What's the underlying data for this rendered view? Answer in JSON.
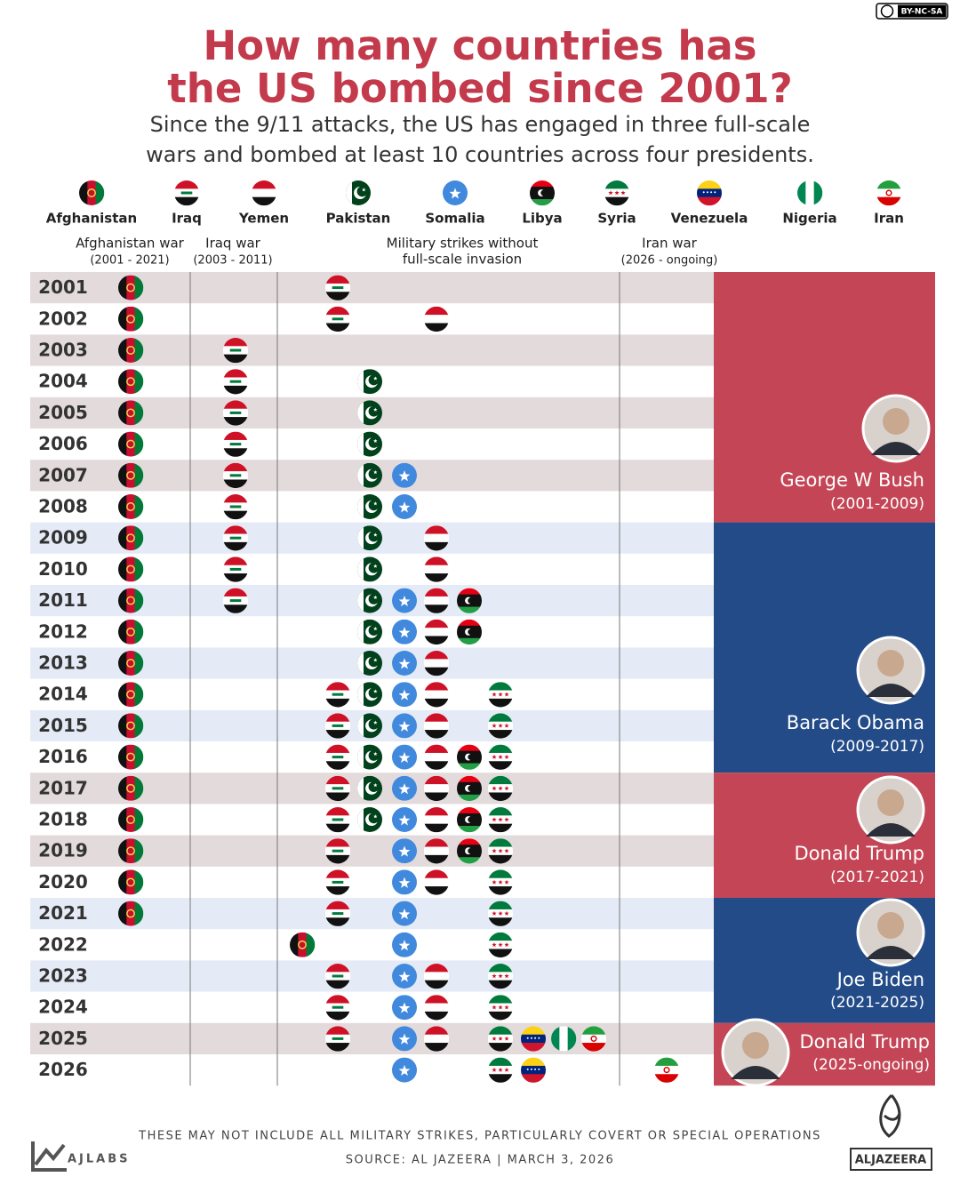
{
  "license": "BY-NC-SA",
  "title": [
    "How many countries has",
    "the US bombed since 2001?"
  ],
  "subtitle": [
    "Since the 9/11 attacks, the US has engaged in three full-scale",
    "wars and bombed at least 10 countries across four presidents."
  ],
  "countries": [
    "Afghanistan",
    "Iraq",
    "Yemen",
    "Pakistan",
    "Somalia",
    "Libya",
    "Syria",
    "Venezuela",
    "Nigeria",
    "Iran"
  ],
  "column_groups": [
    {
      "label": [
        "Afghanistan war"
      ],
      "period": "(2001 - 2021)"
    },
    {
      "label": [
        "Iraq war"
      ],
      "period": "(2003 - 2011)"
    },
    {
      "label": [
        "Military strikes without",
        "full-scale invasion"
      ]
    },
    {
      "label": [
        "Iran war"
      ],
      "period": "(2026 - ongoing)"
    }
  ],
  "rows": [
    {
      "year": "2001",
      "wars": [
        "Afghanistan"
      ],
      "strikes": [
        "Iraq"
      ]
    },
    {
      "year": "2002",
      "wars": [
        "Afghanistan"
      ],
      "strikes": [
        "Iraq",
        "Yemen"
      ]
    },
    {
      "year": "2003",
      "wars": [
        "Afghanistan",
        "Iraq"
      ],
      "strikes": []
    },
    {
      "year": "2004",
      "wars": [
        "Afghanistan",
        "Iraq"
      ],
      "strikes": [
        "Pakistan"
      ]
    },
    {
      "year": "2005",
      "wars": [
        "Afghanistan",
        "Iraq"
      ],
      "strikes": [
        "Pakistan"
      ]
    },
    {
      "year": "2006",
      "wars": [
        "Afghanistan",
        "Iraq"
      ],
      "strikes": [
        "Pakistan"
      ]
    },
    {
      "year": "2007",
      "wars": [
        "Afghanistan",
        "Iraq"
      ],
      "strikes": [
        "Pakistan",
        "Somalia"
      ]
    },
    {
      "year": "2008",
      "wars": [
        "Afghanistan",
        "Iraq"
      ],
      "strikes": [
        "Pakistan",
        "Somalia"
      ]
    },
    {
      "year": "2009",
      "wars": [
        "Afghanistan",
        "Iraq"
      ],
      "strikes": [
        "Pakistan",
        "Yemen"
      ]
    },
    {
      "year": "2010",
      "wars": [
        "Afghanistan",
        "Iraq"
      ],
      "strikes": [
        "Pakistan",
        "Yemen"
      ]
    },
    {
      "year": "2011",
      "wars": [
        "Afghanistan",
        "Iraq"
      ],
      "strikes": [
        "Pakistan",
        "Somalia",
        "Yemen",
        "Libya"
      ]
    },
    {
      "year": "2012",
      "wars": [
        "Afghanistan"
      ],
      "strikes": [
        "Pakistan",
        "Somalia",
        "Yemen",
        "Libya"
      ]
    },
    {
      "year": "2013",
      "wars": [
        "Afghanistan"
      ],
      "strikes": [
        "Pakistan",
        "Somalia",
        "Yemen"
      ]
    },
    {
      "year": "2014",
      "wars": [
        "Afghanistan"
      ],
      "strikes": [
        "Iraq",
        "Pakistan",
        "Somalia",
        "Yemen",
        "Syria"
      ]
    },
    {
      "year": "2015",
      "wars": [
        "Afghanistan"
      ],
      "strikes": [
        "Iraq",
        "Pakistan",
        "Somalia",
        "Yemen",
        "Syria"
      ]
    },
    {
      "year": "2016",
      "wars": [
        "Afghanistan"
      ],
      "strikes": [
        "Iraq",
        "Pakistan",
        "Somalia",
        "Yemen",
        "Libya",
        "Syria"
      ]
    },
    {
      "year": "2017",
      "wars": [
        "Afghanistan"
      ],
      "strikes": [
        "Iraq",
        "Pakistan",
        "Somalia",
        "Yemen",
        "Libya",
        "Syria"
      ]
    },
    {
      "year": "2018",
      "wars": [
        "Afghanistan"
      ],
      "strikes": [
        "Iraq",
        "Pakistan",
        "Somalia",
        "Yemen",
        "Libya",
        "Syria"
      ]
    },
    {
      "year": "2019",
      "wars": [
        "Afghanistan"
      ],
      "strikes": [
        "Iraq",
        "Somalia",
        "Yemen",
        "Libya",
        "Syria"
      ]
    },
    {
      "year": "2020",
      "wars": [
        "Afghanistan"
      ],
      "strikes": [
        "Iraq",
        "Somalia",
        "Yemen",
        "Syria"
      ]
    },
    {
      "year": "2021",
      "wars": [
        "Afghanistan"
      ],
      "strikes": [
        "Iraq",
        "Somalia",
        "Syria"
      ]
    },
    {
      "year": "2022",
      "wars": [],
      "strikes": [
        "Afghanistan",
        "Somalia",
        "Syria"
      ]
    },
    {
      "year": "2023",
      "wars": [],
      "strikes": [
        "Iraq",
        "Somalia",
        "Yemen",
        "Syria"
      ]
    },
    {
      "year": "2024",
      "wars": [],
      "strikes": [
        "Iraq",
        "Somalia",
        "Yemen",
        "Syria"
      ]
    },
    {
      "year": "2025",
      "wars": [],
      "strikes": [
        "Iraq",
        "Somalia",
        "Yemen",
        "Syria",
        "Venezuela",
        "Nigeria",
        "Iran"
      ]
    },
    {
      "year": "2026",
      "wars": [
        "Iran"
      ],
      "strikes": [
        "Somalia",
        "Syria",
        "Venezuela"
      ]
    }
  ],
  "presidents": [
    {
      "name": "George W Bush",
      "period": "(2001-2009)",
      "color": "#c44656",
      "row_shade": "#e3dadb"
    },
    {
      "name": "Barack Obama",
      "period": "(2009-2017)",
      "color": "#234b88",
      "row_shade": "#e5ebf6"
    },
    {
      "name": "Donald Trump",
      "period": "(2017-2021)",
      "color": "#c44656",
      "row_shade": "#e3dadb"
    },
    {
      "name": "Joe Biden",
      "period": "(2021-2025)",
      "color": "#234b88",
      "row_shade": "#e5ebf6"
    },
    {
      "name": "Donald Trump",
      "period": "(2025-ongoing)",
      "color": "#c44656",
      "row_shade": "#e3dadb"
    }
  ],
  "footer": {
    "note": "THESE MAY NOT INCLUDE ALL MILITARY STRIKES, PARTICULARLY COVERT OR SPECIAL OPERATIONS",
    "source": "SOURCE:  AL JAZEERA  |  MARCH 3, 2026",
    "left_logo": "AJLABS",
    "right_logo": "ALJAZEERA"
  }
}
